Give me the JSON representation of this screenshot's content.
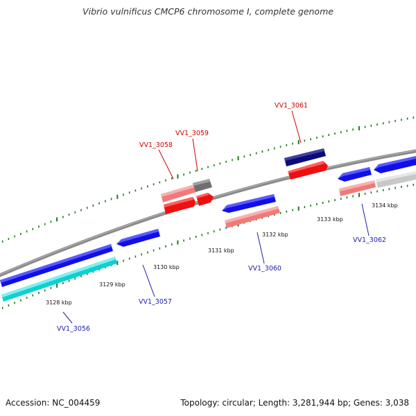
{
  "title": "Vibrio vulnificus CMCP6 chromosome I, complete genome",
  "footer": {
    "accession": "Accession: NC_004459",
    "stats": "Topology: circular; Length: 3,281,944 bp; Genes: 3,038"
  },
  "colors": {
    "backbone": "#7a7a7a",
    "tick": "#1a7a1a",
    "label_top": "#cc0000",
    "label_bottom": "#1a1ab3",
    "blue": "#1010e6",
    "navy": "#0a0a7a",
    "red": "#ee1010",
    "pink": "#f07a7a",
    "cyan": "#10d0d0",
    "grey": "#6e6e6e",
    "lightgrey": "#c8c8c8"
  },
  "scale_labels": [
    "3128 kbp",
    "3129 kbp",
    "3130 kbp",
    "3131 kbp",
    "3132 kbp",
    "3133 kbp",
    "3134 kbp"
  ],
  "gene_labels_top": [
    "VV1_3058",
    "VV1_3059",
    "VV1_3061"
  ],
  "gene_labels_bottom": [
    "VV1_3056",
    "VV1_3057",
    "VV1_3060",
    "VV1_3062"
  ]
}
